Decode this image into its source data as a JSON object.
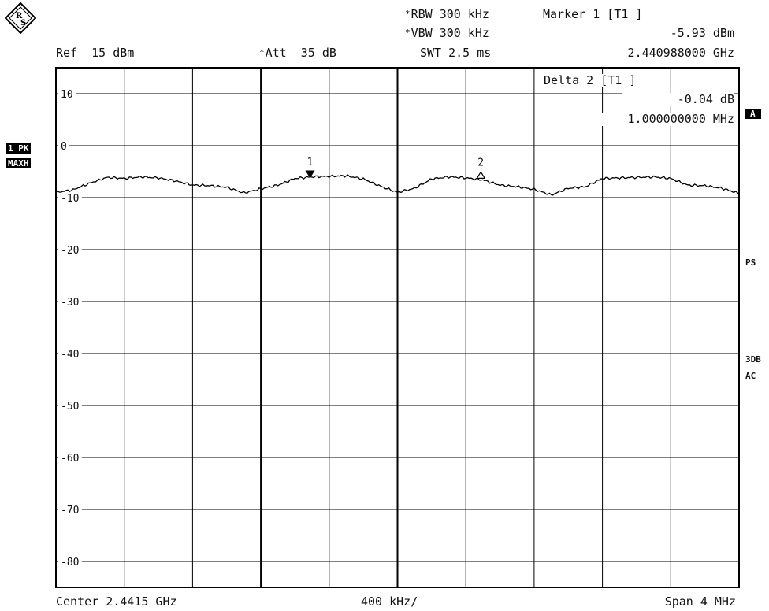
{
  "header": {
    "rbw": "RBW 300 kHz",
    "vbw": "VBW 300 kHz",
    "swt": "SWT 2.5 ms",
    "ref": "Ref  15 dBm",
    "att": "Att  35 dB",
    "marker1_title": "Marker 1 [T1 ]",
    "marker1_level": "-5.93 dBm",
    "marker1_freq": "2.440988000 GHz"
  },
  "delta_box": {
    "title": "Delta 2 [T1 ]",
    "level": "-0.04 dB",
    "freq": "1.000000000 MHz"
  },
  "side_labels": {
    "trace_mode": "1 PK",
    "detector": "MAXH",
    "a": "A",
    "ps": "PS",
    "db3": "3DB",
    "ac": "AC"
  },
  "footer": {
    "center": "Center 2.4415 GHz",
    "div": "400 kHz/",
    "span": "Span 4 MHz"
  },
  "chart_data": {
    "type": "line",
    "x_unit": "GHz",
    "y_unit": "dBm",
    "xlim": [
      2.4395,
      2.4435
    ],
    "ylim": [
      -85,
      15
    ],
    "grid": true,
    "y_ticks": [
      10,
      0,
      -10,
      -20,
      -30,
      -40,
      -50,
      -60,
      -70,
      -80
    ],
    "y_tick_labels": [
      "10",
      "0",
      "-10",
      "-20",
      "-30",
      "-40",
      "-50",
      "-60",
      "-70",
      "-80"
    ],
    "series": [
      {
        "x": [
          2.4395,
          2.4396,
          2.4397,
          2.4398,
          2.4399,
          2.44,
          2.4401,
          2.4402,
          2.4403,
          2.4404,
          2.4405,
          2.4406,
          2.4407,
          2.4408,
          2.4409,
          2.441,
          2.4411,
          2.4412,
          2.4413,
          2.4414,
          2.4415,
          2.4416,
          2.4417,
          2.4418,
          2.4419,
          2.442,
          2.4421,
          2.4422,
          2.4423,
          2.4424,
          2.4425,
          2.4426,
          2.4427,
          2.4428,
          2.4429,
          2.443,
          2.4431,
          2.4432,
          2.4433,
          2.4434,
          2.4435
        ],
        "y": [
          -9.0,
          -8.5,
          -7.2,
          -6.1,
          -6.3,
          -6.0,
          -6.2,
          -6.8,
          -7.6,
          -7.7,
          -8.0,
          -9.1,
          -8.3,
          -7.6,
          -6.3,
          -6.0,
          -5.9,
          -5.8,
          -6.4,
          -7.8,
          -9.0,
          -8.2,
          -6.4,
          -6.0,
          -6.2,
          -6.6,
          -7.6,
          -7.9,
          -8.4,
          -9.5,
          -8.2,
          -7.9,
          -6.3,
          -6.2,
          -6.1,
          -6.0,
          -6.3,
          -7.6,
          -7.7,
          -8.2,
          -9.2
        ]
      }
    ],
    "markers": [
      {
        "label": "1",
        "x": 2.440988,
        "y": -5.93,
        "type": "filled"
      },
      {
        "label": "2",
        "x": 2.441988,
        "y": -5.97,
        "type": "delta"
      }
    ]
  }
}
